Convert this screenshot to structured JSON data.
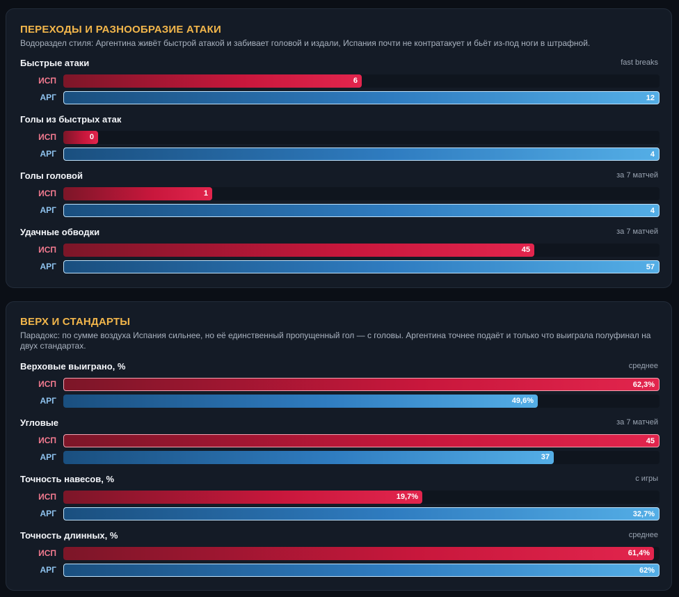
{
  "chart_data": [
    {
      "type": "bar",
      "title": "ПЕРЕХОДЫ И РАЗНООБРАЗИЕ АТАКИ",
      "subtitle": "Водораздел стиля: Аргентина живёт быстрой атакой и забивает головой и издали, Испания почти не контратакует и бьёт из-под ноги в штрафной.",
      "teams": [
        {
          "code": "ИСП",
          "color": "#e2254d"
        },
        {
          "code": "АРГ",
          "color": "#3d8fd0"
        }
      ],
      "metrics": [
        {
          "label": "Быстрые атаки",
          "note": "fast breaks",
          "values": [
            6,
            12
          ],
          "display": [
            "6",
            "12"
          ]
        },
        {
          "label": "Голы из быстрых атак",
          "note": "",
          "values": [
            0,
            4
          ],
          "display": [
            "0",
            "4"
          ]
        },
        {
          "label": "Голы головой",
          "note": "за 7 матчей",
          "values": [
            1,
            4
          ],
          "display": [
            "1",
            "4"
          ]
        },
        {
          "label": "Удачные обводки",
          "note": "за 7 матчей",
          "values": [
            45,
            57
          ],
          "display": [
            "45",
            "57"
          ]
        }
      ]
    },
    {
      "type": "bar",
      "title": "ВЕРХ И СТАНДАРТЫ",
      "subtitle": "Парадокс: по сумме воздуха Испания сильнее, но её единственный пропущенный гол — с головы. Аргентина точнее подаёт и только что выиграла полуфинал на двух стандартах.",
      "teams": [
        {
          "code": "ИСП",
          "color": "#e2254d"
        },
        {
          "code": "АРГ",
          "color": "#3d8fd0"
        }
      ],
      "metrics": [
        {
          "label": "Верховые выиграно, %",
          "note": "среднее",
          "values": [
            62.3,
            49.6
          ],
          "display": [
            "62,3%",
            "49,6%"
          ]
        },
        {
          "label": "Угловые",
          "note": "за 7 матчей",
          "values": [
            45,
            37
          ],
          "display": [
            "45",
            "37"
          ]
        },
        {
          "label": "Точность навесов, %",
          "note": "с игры",
          "values": [
            19.7,
            32.7
          ],
          "display": [
            "19,7%",
            "32,7%"
          ]
        },
        {
          "label": "Точность длинных, %",
          "note": "среднее",
          "values": [
            61.4,
            62
          ],
          "display": [
            "61,4%",
            "62%"
          ]
        }
      ]
    }
  ]
}
